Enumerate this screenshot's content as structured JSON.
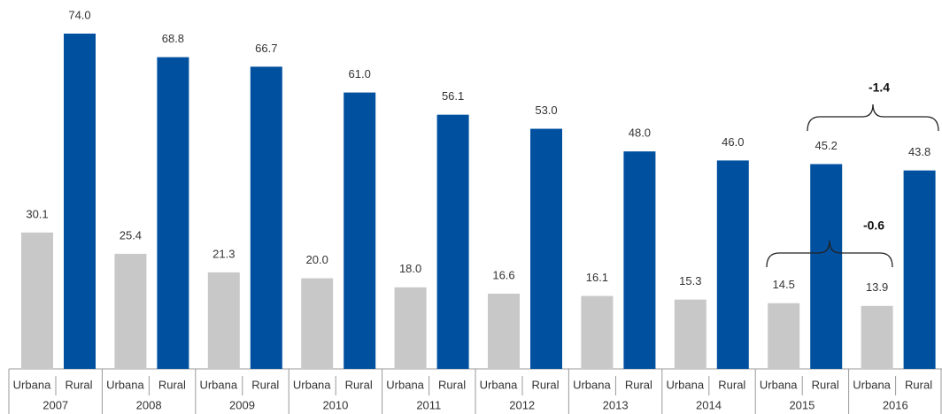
{
  "chart_data": {
    "type": "bar",
    "categories": [
      "2007",
      "2008",
      "2009",
      "2010",
      "2011",
      "2012",
      "2013",
      "2014",
      "2015",
      "2016"
    ],
    "series": [
      {
        "name": "Urbana",
        "color": "#c8c8c8",
        "values": [
          30.1,
          25.4,
          21.3,
          20.0,
          18.0,
          16.6,
          16.1,
          15.3,
          14.5,
          13.9
        ],
        "value_labels": [
          "30.1",
          "25.4",
          "21.3",
          "20.0",
          "18.0",
          "16.6",
          "16.1",
          "15.3",
          "14.5",
          "13.9"
        ]
      },
      {
        "name": "Rural",
        "color": "#0050a0",
        "values": [
          74.0,
          68.8,
          66.7,
          61.0,
          56.1,
          53.0,
          48.0,
          46.0,
          45.2,
          43.8
        ],
        "value_labels": [
          "74.0",
          "68.8",
          "66.7",
          "61.0",
          "56.1",
          "53.0",
          "48.0",
          "46.0",
          "45.2",
          "43.8"
        ]
      }
    ],
    "annotations": [
      {
        "text": "-1.4"
      },
      {
        "text": "-0.6"
      }
    ]
  }
}
